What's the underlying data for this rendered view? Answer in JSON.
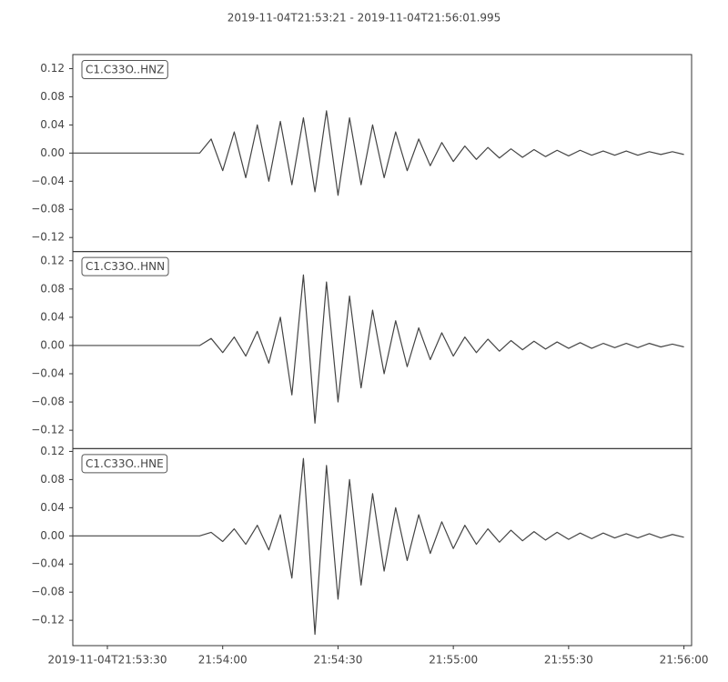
{
  "chart_data": [
    {
      "type": "line",
      "title": "2019-11-04T21:53:21  -  2019-11-04T21:56:01.995",
      "label": "C1.C33O..HNZ",
      "color": "#444444",
      "xlim": [
        78801,
        78961.995
      ],
      "ylim": [
        -0.14,
        0.14
      ],
      "yticks": [
        {
          "value": -0.12,
          "label": "−0.12"
        },
        {
          "value": -0.08,
          "label": "−0.08"
        },
        {
          "value": -0.04,
          "label": "−0.04"
        },
        {
          "value": 0,
          "label": "0.00"
        },
        0.04,
        0.08,
        0.12
      ],
      "x": [
        78801,
        78804,
        78807,
        78810,
        78813,
        78816,
        78819,
        78822,
        78825,
        78828,
        78831,
        78834,
        78837,
        78840,
        78843,
        78846,
        78849,
        78852,
        78855,
        78858,
        78861,
        78864,
        78867,
        78870,
        78873,
        78876,
        78879,
        78882,
        78885,
        78888,
        78891,
        78894,
        78897,
        78900,
        78903,
        78906,
        78909,
        78912,
        78915,
        78918,
        78921,
        78924,
        78927,
        78930,
        78933,
        78936,
        78939,
        78942,
        78945,
        78948,
        78951,
        78954,
        78957,
        78960
      ],
      "values": [
        0,
        0,
        0,
        0,
        0,
        0,
        0,
        0,
        0,
        0,
        0,
        0,
        0.02,
        -0.025,
        0.03,
        -0.035,
        0.04,
        -0.04,
        0.045,
        -0.045,
        0.05,
        -0.055,
        0.06,
        -0.06,
        0.05,
        -0.045,
        0.04,
        -0.035,
        0.03,
        -0.025,
        0.02,
        -0.018,
        0.015,
        -0.012,
        0.01,
        -0.009,
        0.008,
        -0.007,
        0.006,
        -0.006,
        0.005,
        -0.005,
        0.004,
        -0.004,
        0.004,
        -0.003,
        0.003,
        -0.003,
        0.003,
        -0.003,
        0.002,
        -0.002,
        0.002,
        -0.002
      ]
    },
    {
      "type": "line",
      "label": "C1.C33O..HNN",
      "color": "#444444",
      "xlim": [
        78801,
        78961.995
      ],
      "ylim": [
        -0.146,
        0.133
      ],
      "yticks": [
        {
          "value": -0.12,
          "label": "−0.12"
        },
        {
          "value": -0.08,
          "label": "−0.08"
        },
        {
          "value": -0.04,
          "label": "−0.04"
        },
        {
          "value": 0,
          "label": "0.00"
        },
        0.04,
        0.08,
        0.12
      ],
      "x": [
        78801,
        78804,
        78807,
        78810,
        78813,
        78816,
        78819,
        78822,
        78825,
        78828,
        78831,
        78834,
        78837,
        78840,
        78843,
        78846,
        78849,
        78852,
        78855,
        78858,
        78861,
        78864,
        78867,
        78870,
        78873,
        78876,
        78879,
        78882,
        78885,
        78888,
        78891,
        78894,
        78897,
        78900,
        78903,
        78906,
        78909,
        78912,
        78915,
        78918,
        78921,
        78924,
        78927,
        78930,
        78933,
        78936,
        78939,
        78942,
        78945,
        78948,
        78951,
        78954,
        78957,
        78960
      ],
      "values": [
        0,
        0,
        0,
        0,
        0,
        0,
        0,
        0,
        0,
        0,
        0,
        0,
        0.01,
        -0.01,
        0.012,
        -0.015,
        0.02,
        -0.025,
        0.04,
        -0.07,
        0.1,
        -0.11,
        0.09,
        -0.08,
        0.07,
        -0.06,
        0.05,
        -0.04,
        0.035,
        -0.03,
        0.025,
        -0.02,
        0.018,
        -0.015,
        0.012,
        -0.01,
        0.009,
        -0.008,
        0.007,
        -0.006,
        0.006,
        -0.005,
        0.005,
        -0.004,
        0.004,
        -0.004,
        0.003,
        -0.003,
        0.003,
        -0.003,
        0.003,
        -0.002,
        0.002,
        -0.002
      ]
    },
    {
      "type": "line",
      "label": "C1.C33O..HNE",
      "color": "#444444",
      "xlim": [
        78801,
        78961.995
      ],
      "ylim": [
        -0.156,
        0.124
      ],
      "yticks": [
        {
          "value": -0.12,
          "label": "−0.12"
        },
        {
          "value": -0.08,
          "label": "−0.08"
        },
        {
          "value": -0.04,
          "label": "−0.04"
        },
        {
          "value": 0,
          "label": "0.00"
        },
        0.04,
        0.08,
        0.12
      ],
      "xticks": [
        {
          "value": 78810,
          "label": "2019-11-04T21:53:30"
        },
        {
          "value": 78840,
          "label": "21:54:00"
        },
        {
          "value": 78870,
          "label": "21:54:30"
        },
        {
          "value": 78900,
          "label": "21:55:00"
        },
        {
          "value": 78930,
          "label": "21:55:30"
        },
        {
          "value": 78960,
          "label": "21:56:00"
        }
      ],
      "x": [
        78801,
        78804,
        78807,
        78810,
        78813,
        78816,
        78819,
        78822,
        78825,
        78828,
        78831,
        78834,
        78837,
        78840,
        78843,
        78846,
        78849,
        78852,
        78855,
        78858,
        78861,
        78864,
        78867,
        78870,
        78873,
        78876,
        78879,
        78882,
        78885,
        78888,
        78891,
        78894,
        78897,
        78900,
        78903,
        78906,
        78909,
        78912,
        78915,
        78918,
        78921,
        78924,
        78927,
        78930,
        78933,
        78936,
        78939,
        78942,
        78945,
        78948,
        78951,
        78954,
        78957,
        78960
      ],
      "values": [
        0,
        0,
        0,
        0,
        0,
        0,
        0,
        0,
        0,
        0,
        0,
        0,
        0.005,
        -0.008,
        0.01,
        -0.012,
        0.015,
        -0.02,
        0.03,
        -0.06,
        0.11,
        -0.14,
        0.1,
        -0.09,
        0.08,
        -0.07,
        0.06,
        -0.05,
        0.04,
        -0.035,
        0.03,
        -0.025,
        0.02,
        -0.018,
        0.015,
        -0.012,
        0.01,
        -0.009,
        0.008,
        -0.007,
        0.006,
        -0.006,
        0.005,
        -0.005,
        0.004,
        -0.004,
        0.004,
        -0.003,
        0.003,
        -0.003,
        0.003,
        -0.003,
        0.002,
        -0.002
      ]
    }
  ]
}
